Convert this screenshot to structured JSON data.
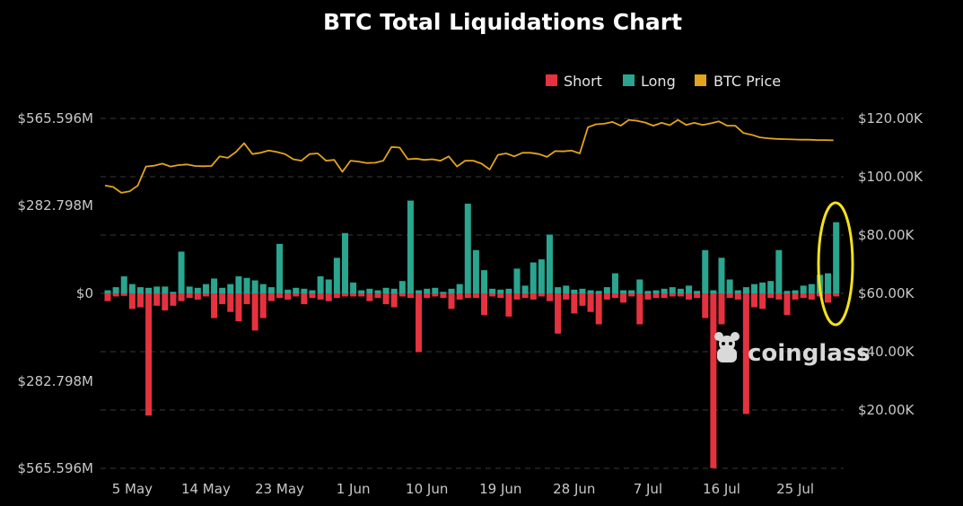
{
  "colors": {
    "background": "#000000",
    "short": "#e5323f",
    "long": "#2aa58f",
    "price": "#e2a41b",
    "grid": "#3a3a3a",
    "highlight": "#f2e21a"
  },
  "watermark": "coinglass",
  "chart_data": {
    "type": "bar",
    "title": "BTC Total Liquidations Chart",
    "legend": [
      "Short",
      "Long",
      "BTC Price"
    ],
    "legend_position": "top-right",
    "grid": true,
    "y_left_ticks": [
      "$565.596M",
      "$282.798M",
      "$0",
      "$282.798M",
      "$565.596M"
    ],
    "y_left_range_millions": [
      -565.596,
      565.596
    ],
    "y_right_ticks": [
      "$120.00K",
      "$100.00K",
      "$80.00K",
      "$60.00K",
      "$40.00K",
      "$20.00K"
    ],
    "y_right_range_usd": [
      0,
      125000
    ],
    "x_tick_labels": [
      "5 May",
      "14 May",
      "23 May",
      "1 Jun",
      "10 Jun",
      "19 Jun",
      "28 Jun",
      "7 Jul",
      "16 Jul",
      "25 Jul"
    ],
    "x_tick_day_index": [
      3,
      12,
      21,
      30,
      39,
      48,
      57,
      66,
      75,
      84
    ],
    "dates_start": "2 May",
    "long_millions": [
      10,
      20,
      55,
      30,
      20,
      18,
      22,
      22,
      5,
      135,
      22,
      18,
      30,
      48,
      18,
      30,
      55,
      50,
      42,
      30,
      20,
      160,
      12,
      18,
      15,
      10,
      55,
      45,
      115,
      195,
      35,
      10,
      15,
      10,
      18,
      15,
      40,
      300,
      10,
      15,
      18,
      5,
      15,
      30,
      290,
      140,
      75,
      15,
      12,
      15,
      80,
      25,
      100,
      110,
      190,
      20,
      25,
      12,
      15,
      10,
      8,
      20,
      65,
      10,
      10,
      45,
      8,
      10,
      15,
      20,
      15,
      25,
      8,
      140,
      10,
      115,
      45,
      10,
      20,
      30,
      35,
      40,
      140,
      8,
      10,
      25,
      30,
      60,
      65,
      230
    ],
    "short_millions": [
      25,
      10,
      8,
      50,
      45,
      395,
      40,
      55,
      40,
      25,
      15,
      20,
      10,
      80,
      35,
      60,
      90,
      35,
      120,
      80,
      25,
      15,
      20,
      10,
      35,
      15,
      20,
      25,
      15,
      10,
      10,
      10,
      25,
      15,
      35,
      45,
      10,
      15,
      190,
      15,
      10,
      15,
      50,
      20,
      15,
      15,
      70,
      10,
      15,
      75,
      20,
      15,
      20,
      10,
      25,
      130,
      20,
      65,
      40,
      60,
      100,
      20,
      15,
      30,
      10,
      100,
      20,
      15,
      15,
      10,
      10,
      20,
      15,
      80,
      565,
      100,
      15,
      20,
      390,
      45,
      50,
      15,
      20,
      70,
      20,
      15,
      20,
      10,
      30,
      10
    ],
    "price_usd": [
      97000,
      96500,
      94500,
      95000,
      97000,
      103500,
      103800,
      104500,
      103500,
      104000,
      104200,
      103700,
      103600,
      103700,
      107000,
      106500,
      108500,
      111500,
      107800,
      108200,
      109000,
      108500,
      107800,
      106000,
      105500,
      107800,
      108000,
      105500,
      105800,
      101700,
      105500,
      105200,
      104700,
      104800,
      105500,
      110200,
      110000,
      106000,
      106200,
      105800,
      106000,
      105500,
      107000,
      103500,
      105500,
      105500,
      104500,
      102500,
      107500,
      108000,
      107000,
      108200,
      108200,
      107800,
      106800,
      108800,
      108700,
      109000,
      108000,
      117000,
      118000,
      118200,
      118800,
      117500,
      119500,
      119200,
      118600,
      117500,
      118500,
      117700,
      119500,
      117800,
      118500,
      117800,
      118300,
      119000,
      117500,
      117500,
      115000,
      114400,
      113500,
      113200,
      113000,
      112900,
      112800,
      112700,
      112700,
      112600,
      112600,
      112500
    ]
  }
}
